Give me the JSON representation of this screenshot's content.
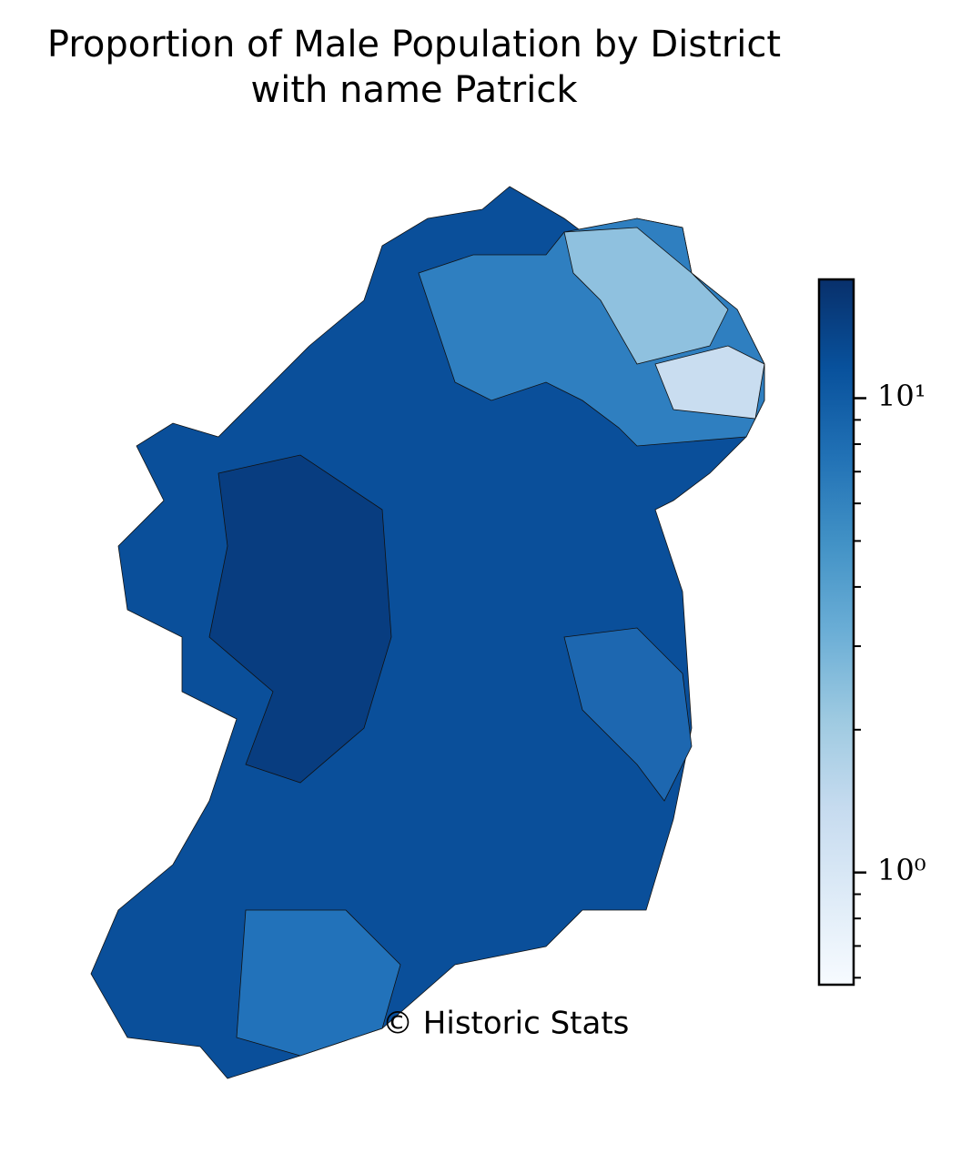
{
  "chart_data": {
    "type": "choropleth",
    "title": "Proportion of Male Population by District\nwith name Patrick",
    "annotation": "© Historic Stats",
    "colorbar": {
      "scale": "log",
      "ylim": [
        0.58,
        17.8
      ],
      "yticks": [
        {
          "value": 1,
          "label": "10⁰"
        },
        {
          "value": 10,
          "label": "10¹"
        }
      ],
      "minor_yticks": [
        0.6,
        0.7,
        0.8,
        0.9,
        2,
        3,
        4,
        5,
        6,
        7,
        8,
        9
      ],
      "colormap": [
        "#f7fbff",
        "#deebf7",
        "#c6dbef",
        "#9ecae1",
        "#6baed6",
        "#4292c6",
        "#2171b5",
        "#08519c",
        "#08306b"
      ]
    }
  }
}
